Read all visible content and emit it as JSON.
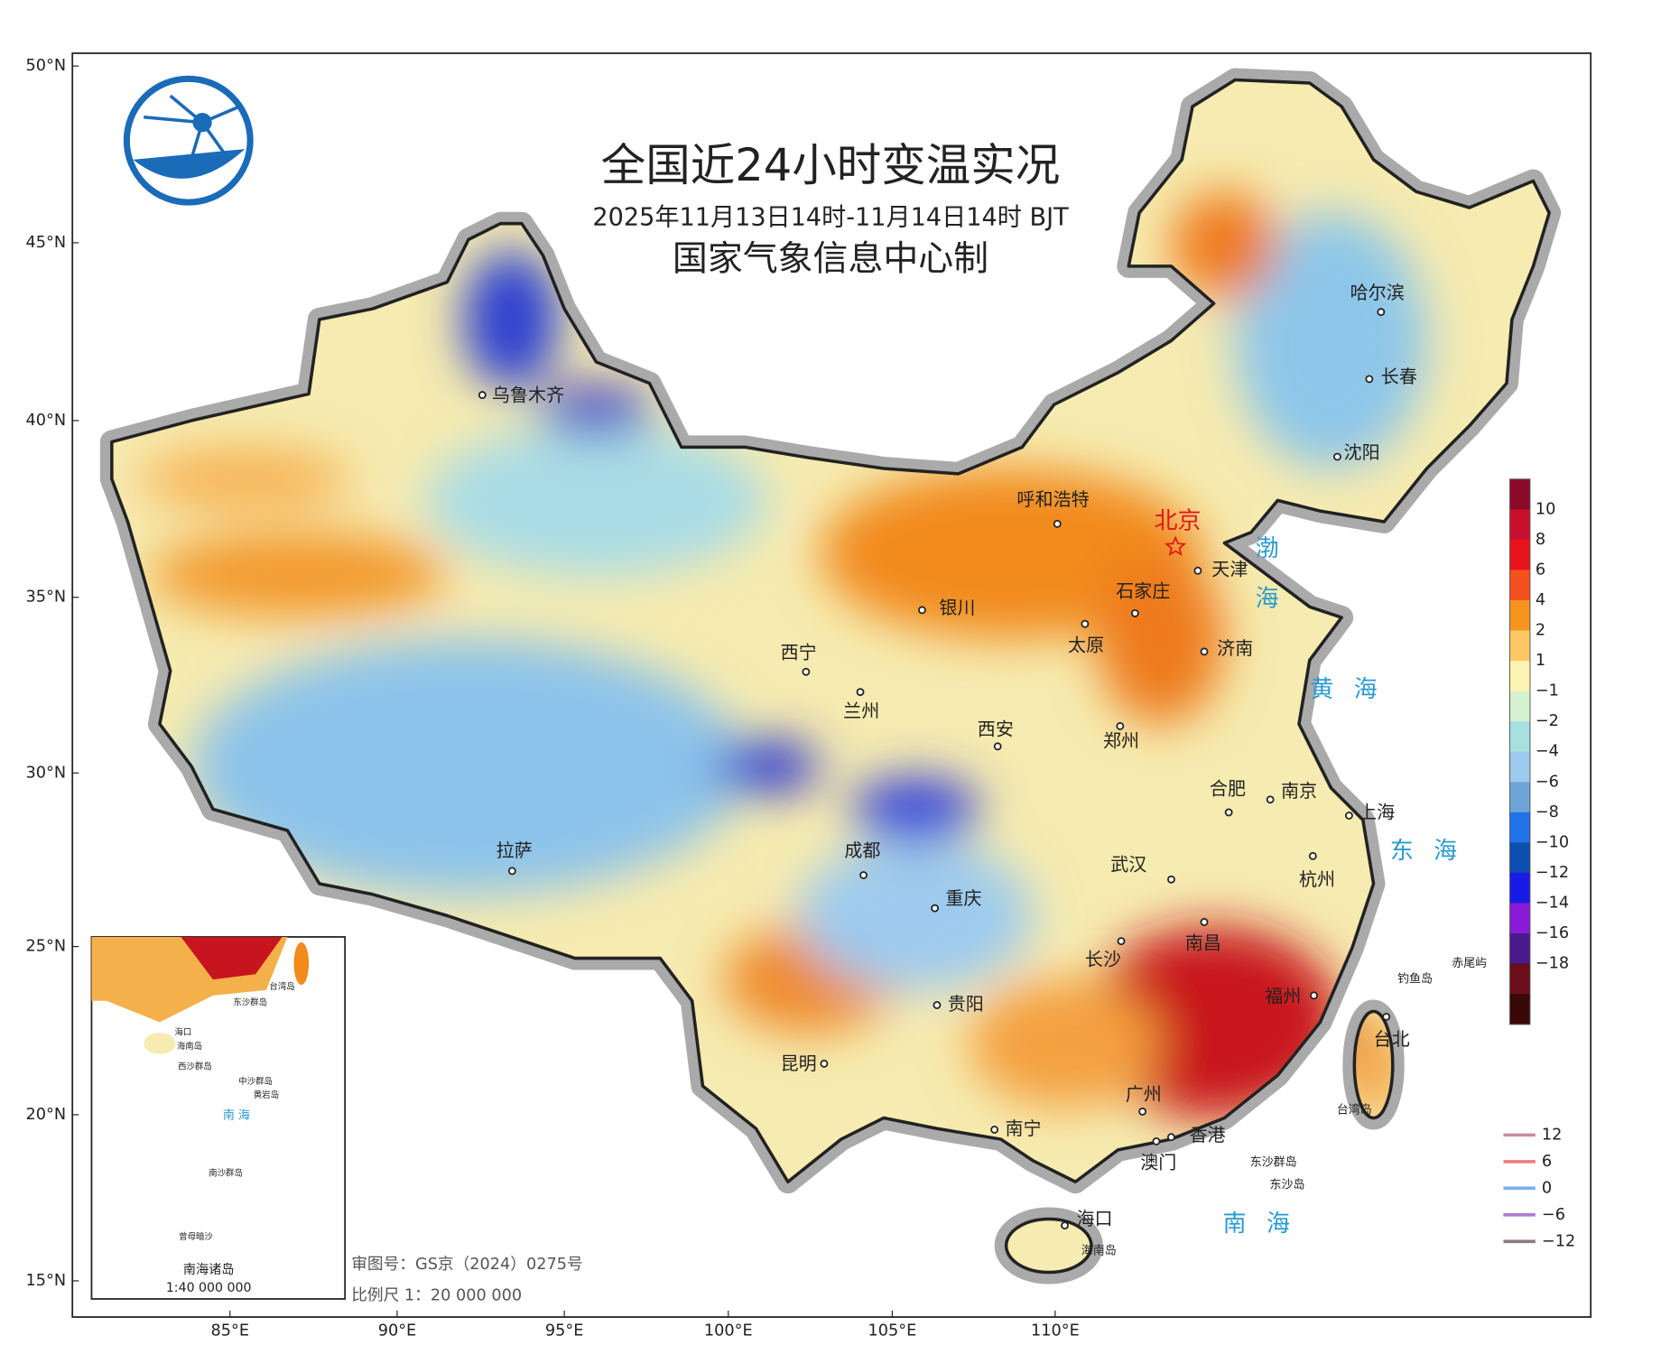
{
  "map": {
    "title": "全国近24小时变温实况",
    "subtitle": "2025年11月13日14时-11月14日14时 BJT",
    "producer": "国家气象信息中心制",
    "lat_ticks": [
      "50°N",
      "45°N",
      "40°N",
      "35°N",
      "30°N",
      "25°N",
      "20°N",
      "15°N"
    ],
    "lon_ticks": [
      "85°E",
      "90°E",
      "95°E",
      "100°E",
      "105°E",
      "110°E"
    ],
    "capital": "北京",
    "cities": [
      "乌鲁木齐",
      "呼和浩特",
      "天津",
      "石家庄",
      "银川",
      "太原",
      "济南",
      "西宁",
      "兰州",
      "西安",
      "郑州",
      "合肥",
      "南京",
      "上海",
      "拉萨",
      "成都",
      "武汉",
      "杭州",
      "重庆",
      "长沙",
      "南昌",
      "福州",
      "贵阳",
      "昆明",
      "台北",
      "广州",
      "南宁",
      "香港",
      "澳门",
      "海口",
      "哈尔滨",
      "长春",
      "沈阳"
    ],
    "seas": [
      "渤",
      "海",
      "黄 海",
      "东 海",
      "南 海"
    ],
    "islands": [
      "钓鱼岛",
      "赤尾屿",
      "台湾岛",
      "海南岛",
      "东沙群岛",
      "东沙岛"
    ],
    "colorbar": {
      "labels": [
        "10",
        "8",
        "6",
        "4",
        "2",
        "1",
        "−1",
        "−2",
        "−4",
        "−6",
        "−8",
        "−10",
        "−12",
        "−14",
        "−16",
        "−18"
      ],
      "colors": [
        "#8b0a2a",
        "#c8102e",
        "#e8141c",
        "#f4501e",
        "#f7941d",
        "#fdc865",
        "#fdf3b0",
        "#d6f1cf",
        "#a6e0e0",
        "#9dcaee",
        "#6ea4d6",
        "#1f72e8",
        "#0c4fb0",
        "#1a1ae6",
        "#8a1ad8",
        "#4b1a8c",
        "#6b0e1a",
        "#3a0808"
      ]
    },
    "contour_legend": {
      "labels": [
        "12",
        "6",
        "0",
        "−6",
        "−12"
      ],
      "colors": [
        "#c98a9a",
        "#ee7b7b",
        "#7aaef0",
        "#b07ad8",
        "#8a7a80"
      ]
    },
    "inset": {
      "title": "南海诸岛",
      "scale": "1:40 000 000",
      "labels": [
        "台湾岛",
        "东沙群岛",
        "海口",
        "海南岛",
        "西沙群岛",
        "中沙群岛",
        "黄岩岛",
        "南 海",
        "南沙群岛",
        "曾母暗沙"
      ]
    },
    "footer": {
      "approval": "审图号：GS京（2024）0275号",
      "scale": "比例尺 1：20 000 000"
    }
  }
}
